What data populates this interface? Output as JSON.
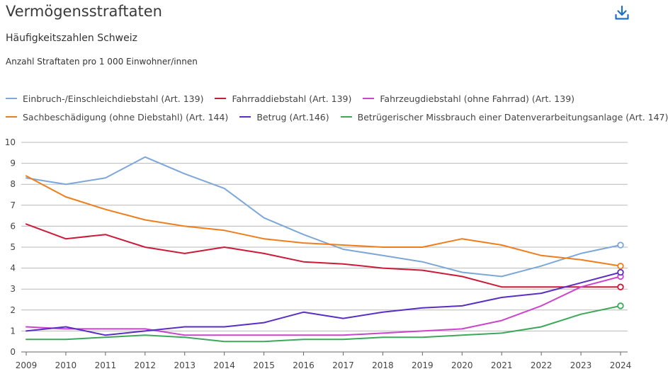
{
  "title": "Vermögensstraftaten",
  "subtitle": "Häufigkeitszahlen Schweiz",
  "unit_label": "Anzahl Straftaten pro 1 000 Einwohner/innen",
  "download_icon": "download-icon",
  "chart_data": {
    "type": "line",
    "x": [
      2009,
      2010,
      2011,
      2012,
      2013,
      2014,
      2015,
      2016,
      2017,
      2018,
      2019,
      2020,
      2021,
      2022,
      2023,
      2024
    ],
    "ylim": [
      0,
      10
    ],
    "yticks": [
      0,
      1,
      2,
      3,
      4,
      5,
      6,
      7,
      8,
      9,
      10
    ],
    "grid": true,
    "legend_position": "top",
    "series": [
      {
        "name": "Einbruch-/Einschleichdiebstahl (Art. 139)",
        "color": "#7ca7d8",
        "values": [
          8.3,
          8.0,
          8.3,
          9.3,
          8.5,
          7.8,
          6.4,
          5.6,
          4.9,
          4.6,
          4.3,
          3.8,
          3.6,
          4.1,
          4.7,
          5.1
        ]
      },
      {
        "name": "Fahrraddiebstahl (Art. 139)",
        "color": "#cc1a38",
        "values": [
          6.1,
          5.4,
          5.6,
          5.0,
          4.7,
          5.0,
          4.7,
          4.3,
          4.2,
          4.0,
          3.9,
          3.6,
          3.1,
          3.1,
          3.1,
          3.1
        ]
      },
      {
        "name": "Fahrzeugdiebstahl (ohne Fahrrad) (Art. 139)",
        "color": "#cc44cc",
        "values": [
          1.2,
          1.1,
          1.1,
          1.1,
          0.8,
          0.8,
          0.8,
          0.8,
          0.8,
          0.9,
          1.0,
          1.1,
          1.5,
          2.2,
          3.1,
          3.6
        ]
      },
      {
        "name": "Sachbeschädigung (ohne Diebstahl) (Art. 144)",
        "color": "#f07d1a",
        "values": [
          8.4,
          7.4,
          6.8,
          6.3,
          6.0,
          5.8,
          5.4,
          5.2,
          5.1,
          5.0,
          5.0,
          5.4,
          5.1,
          4.6,
          4.4,
          4.1
        ]
      },
      {
        "name": "Betrug (Art.146)",
        "color": "#5a2ec4",
        "values": [
          1.0,
          1.2,
          0.8,
          1.0,
          1.2,
          1.2,
          1.4,
          1.9,
          1.6,
          1.9,
          2.1,
          2.2,
          2.6,
          2.8,
          3.3,
          3.8
        ]
      },
      {
        "name": "Betrügerischer Missbrauch einer Datenverarbeitungsanlage (Art. 147)",
        "color": "#3da85a",
        "values": [
          0.6,
          0.6,
          0.7,
          0.8,
          0.7,
          0.5,
          0.5,
          0.6,
          0.6,
          0.7,
          0.7,
          0.8,
          0.9,
          1.2,
          1.8,
          2.2
        ]
      }
    ]
  }
}
